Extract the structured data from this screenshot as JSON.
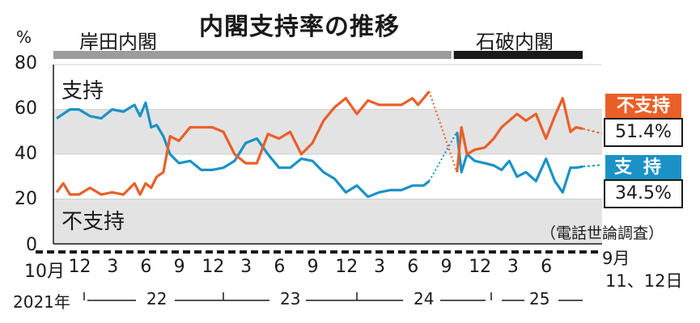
{
  "chart_data": {
    "type": "line",
    "title": "内閣支持率の推移",
    "unit": "%",
    "ylim": [
      0,
      80
    ],
    "yticks": [
      "0",
      "20",
      "40",
      "60",
      "80"
    ],
    "periods": [
      {
        "name": "岸田内閣",
        "start": 0,
        "end": 35.5
      },
      {
        "name": "石破内閣",
        "start": 36,
        "end": 47.3
      }
    ],
    "x_tick_labels": [
      {
        "x": 0,
        "label": "10月"
      },
      {
        "x": 2,
        "label": "12"
      },
      {
        "x": 5,
        "label": "3"
      },
      {
        "x": 8,
        "label": "6"
      },
      {
        "x": 11,
        "label": "9"
      },
      {
        "x": 14,
        "label": "12"
      },
      {
        "x": 17,
        "label": "3"
      },
      {
        "x": 20,
        "label": "6"
      },
      {
        "x": 23,
        "label": "9"
      },
      {
        "x": 26,
        "label": "12"
      },
      {
        "x": 29,
        "label": "3"
      },
      {
        "x": 32,
        "label": "6"
      },
      {
        "x": 35,
        "label": "9"
      },
      {
        "x": 38,
        "label": "12"
      },
      {
        "x": 41,
        "label": "3"
      },
      {
        "x": 44,
        "label": "6"
      }
    ],
    "year_labels": [
      "2021年",
      "22",
      "23",
      "24",
      "25"
    ],
    "end_label": [
      "9月",
      "11、12日"
    ],
    "note": "（電話世論調査）",
    "series": [
      {
        "name": "支持",
        "color": "#1a92c6",
        "latest_label": "34.5%",
        "points": [
          [
            0,
            56
          ],
          [
            0.6,
            58
          ],
          [
            1.2,
            60
          ],
          [
            2,
            60
          ],
          [
            3,
            57
          ],
          [
            4,
            56
          ],
          [
            5,
            60
          ],
          [
            6,
            59
          ],
          [
            7,
            62
          ],
          [
            7.5,
            57
          ],
          [
            8,
            63
          ],
          [
            8.5,
            52
          ],
          [
            9,
            53
          ],
          [
            9.6,
            48
          ],
          [
            10.2,
            40
          ],
          [
            11,
            36
          ],
          [
            12,
            37
          ],
          [
            13,
            33
          ],
          [
            14,
            33
          ],
          [
            15,
            34
          ],
          [
            16,
            37
          ],
          [
            17,
            45
          ],
          [
            18,
            47
          ],
          [
            19,
            40
          ],
          [
            20,
            34
          ],
          [
            21,
            34
          ],
          [
            22,
            38
          ],
          [
            23,
            37
          ],
          [
            24,
            32
          ],
          [
            25,
            29
          ],
          [
            26,
            23
          ],
          [
            27,
            26
          ],
          [
            28,
            21
          ],
          [
            29,
            23
          ],
          [
            30,
            24
          ],
          [
            31,
            24
          ],
          [
            32,
            26
          ],
          [
            33,
            26
          ],
          [
            33.5,
            28
          ],
          [
            36,
            50
          ],
          [
            36.4,
            32
          ],
          [
            36.9,
            40
          ],
          [
            37.6,
            37
          ],
          [
            38.5,
            36
          ],
          [
            39.3,
            35
          ],
          [
            40,
            33
          ],
          [
            40.7,
            37
          ],
          [
            41.4,
            30
          ],
          [
            42.2,
            32
          ],
          [
            43.1,
            28
          ],
          [
            44,
            38
          ],
          [
            44.8,
            28
          ],
          [
            45.5,
            23
          ],
          [
            46.2,
            34
          ],
          [
            46.7,
            34
          ],
          [
            47.3,
            34.5
          ]
        ]
      },
      {
        "name": "不支持",
        "color": "#e95f27",
        "latest_label": "51.4%",
        "points": [
          [
            0,
            23
          ],
          [
            0.6,
            27
          ],
          [
            1.2,
            22
          ],
          [
            2,
            22
          ],
          [
            3,
            25
          ],
          [
            4,
            22
          ],
          [
            5,
            23
          ],
          [
            6,
            22
          ],
          [
            7,
            27
          ],
          [
            7.5,
            22
          ],
          [
            8,
            27
          ],
          [
            8.5,
            25
          ],
          [
            9,
            30
          ],
          [
            9.6,
            32
          ],
          [
            10.2,
            48
          ],
          [
            11,
            46
          ],
          [
            12,
            52
          ],
          [
            13,
            52
          ],
          [
            14,
            52
          ],
          [
            15,
            50
          ],
          [
            16,
            40
          ],
          [
            17,
            36
          ],
          [
            18,
            36
          ],
          [
            19,
            49
          ],
          [
            20,
            47
          ],
          [
            21,
            50
          ],
          [
            22,
            40
          ],
          [
            23,
            45
          ],
          [
            24,
            55
          ],
          [
            25,
            61
          ],
          [
            26,
            65
          ],
          [
            27,
            58
          ],
          [
            28,
            64
          ],
          [
            29,
            62
          ],
          [
            30,
            62
          ],
          [
            31,
            62
          ],
          [
            32,
            65
          ],
          [
            32.5,
            62
          ],
          [
            33.5,
            68
          ],
          [
            36,
            32
          ],
          [
            36.4,
            52
          ],
          [
            36.9,
            40
          ],
          [
            37.6,
            42
          ],
          [
            38.5,
            43
          ],
          [
            39.3,
            47
          ],
          [
            40,
            52
          ],
          [
            40.7,
            55
          ],
          [
            41.4,
            58
          ],
          [
            42.2,
            55
          ],
          [
            43.1,
            58
          ],
          [
            44,
            47
          ],
          [
            44.8,
            57
          ],
          [
            45.5,
            65
          ],
          [
            46.2,
            50
          ],
          [
            46.7,
            52
          ],
          [
            47.3,
            51.4
          ]
        ]
      }
    ],
    "inline_labels": {
      "approve": "支持",
      "disapprove": "不支持"
    }
  }
}
